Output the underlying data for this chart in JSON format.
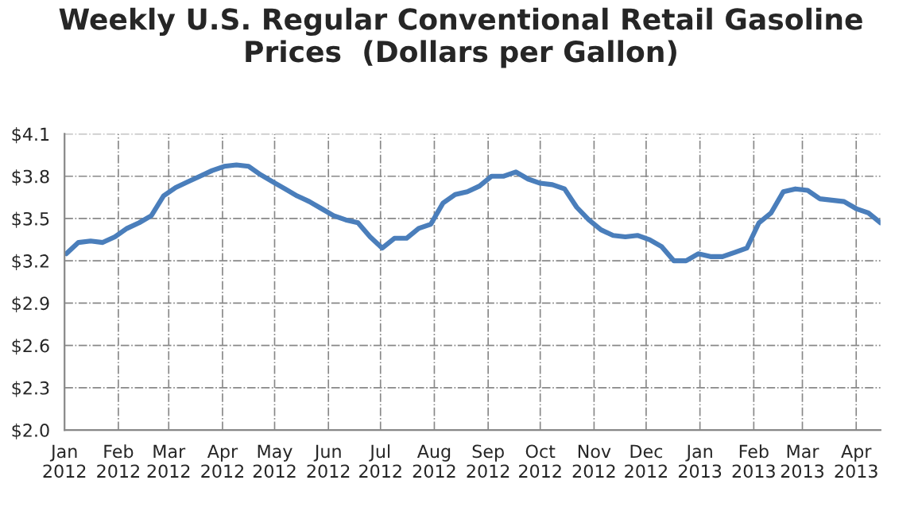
{
  "chart_data": {
    "type": "line",
    "title": "Weekly U.S. Regular Conventional Retail Gasoline\nPrices  (Dollars per Gallon)",
    "x": [
      "2012-01-02",
      "2012-01-09",
      "2012-01-16",
      "2012-01-23",
      "2012-01-30",
      "2012-02-06",
      "2012-02-13",
      "2012-02-20",
      "2012-02-27",
      "2012-03-05",
      "2012-03-12",
      "2012-03-19",
      "2012-03-26",
      "2012-04-02",
      "2012-04-09",
      "2012-04-16",
      "2012-04-23",
      "2012-04-30",
      "2012-05-07",
      "2012-05-14",
      "2012-05-21",
      "2012-05-28",
      "2012-06-04",
      "2012-06-11",
      "2012-06-18",
      "2012-06-25",
      "2012-07-02",
      "2012-07-09",
      "2012-07-16",
      "2012-07-23",
      "2012-07-30",
      "2012-08-06",
      "2012-08-13",
      "2012-08-20",
      "2012-08-27",
      "2012-09-03",
      "2012-09-10",
      "2012-09-17",
      "2012-09-24",
      "2012-10-01",
      "2012-10-08",
      "2012-10-15",
      "2012-10-22",
      "2012-10-29",
      "2012-11-05",
      "2012-11-12",
      "2012-11-19",
      "2012-11-26",
      "2012-12-03",
      "2012-12-10",
      "2012-12-17",
      "2012-12-24",
      "2012-12-31",
      "2013-01-07",
      "2013-01-14",
      "2013-01-21",
      "2013-01-28",
      "2013-02-04",
      "2013-02-11",
      "2013-02-18",
      "2013-02-25",
      "2013-03-04",
      "2013-03-11",
      "2013-03-18",
      "2013-03-25",
      "2013-04-01",
      "2013-04-08",
      "2013-04-15"
    ],
    "series": [
      {
        "color": "#4a7ebb",
        "values": [
          3.25,
          3.33,
          3.34,
          3.33,
          3.37,
          3.43,
          3.47,
          3.52,
          3.66,
          3.72,
          3.76,
          3.8,
          3.84,
          3.87,
          3.88,
          3.87,
          3.81,
          3.76,
          3.71,
          3.66,
          3.62,
          3.57,
          3.52,
          3.49,
          3.47,
          3.37,
          3.29,
          3.36,
          3.36,
          3.43,
          3.46,
          3.61,
          3.67,
          3.69,
          3.73,
          3.8,
          3.8,
          3.83,
          3.78,
          3.75,
          3.74,
          3.71,
          3.58,
          3.49,
          3.42,
          3.38,
          3.37,
          3.38,
          3.35,
          3.3,
          3.2,
          3.2,
          3.25,
          3.23,
          3.23,
          3.26,
          3.29,
          3.47,
          3.54,
          3.69,
          3.71,
          3.7,
          3.64,
          3.63,
          3.62,
          3.57,
          3.54,
          3.47
        ]
      }
    ],
    "xlim": [
      "2012-01-01",
      "2013-04-15"
    ],
    "xticks": [
      {
        "value": "2012-01-01",
        "label": "Jan\n2012"
      },
      {
        "value": "2012-02-01",
        "label": "Feb\n2012"
      },
      {
        "value": "2012-03-01",
        "label": "Mar\n2012"
      },
      {
        "value": "2012-04-01",
        "label": "Apr\n2012"
      },
      {
        "value": "2012-05-01",
        "label": "May\n2012"
      },
      {
        "value": "2012-06-01",
        "label": "Jun\n2012"
      },
      {
        "value": "2012-07-01",
        "label": "Jul\n2012"
      },
      {
        "value": "2012-08-01",
        "label": "Aug\n2012"
      },
      {
        "value": "2012-09-01",
        "label": "Sep\n2012"
      },
      {
        "value": "2012-10-01",
        "label": "Oct\n2012"
      },
      {
        "value": "2012-11-01",
        "label": "Nov\n2012"
      },
      {
        "value": "2012-12-01",
        "label": "Dec\n2012"
      },
      {
        "value": "2013-01-01",
        "label": "Jan\n2013"
      },
      {
        "value": "2013-02-01",
        "label": "Feb\n2013"
      },
      {
        "value": "2013-03-01",
        "label": "Mar\n2013"
      },
      {
        "value": "2013-04-01",
        "label": "Apr\n2013"
      }
    ],
    "ylim": [
      2.0,
      4.1
    ],
    "yticks": [
      {
        "value": 2.0,
        "label": "$2.0"
      },
      {
        "value": 2.3,
        "label": "$2.3"
      },
      {
        "value": 2.6,
        "label": "$2.6"
      },
      {
        "value": 2.9,
        "label": "$2.9"
      },
      {
        "value": 3.2,
        "label": "$3.2"
      },
      {
        "value": 3.5,
        "label": "$3.5"
      },
      {
        "value": 3.8,
        "label": "$3.8"
      },
      {
        "value": 4.1,
        "label": "$4.1"
      }
    ],
    "grid": true,
    "marker": "none",
    "line_style": "solid"
  }
}
